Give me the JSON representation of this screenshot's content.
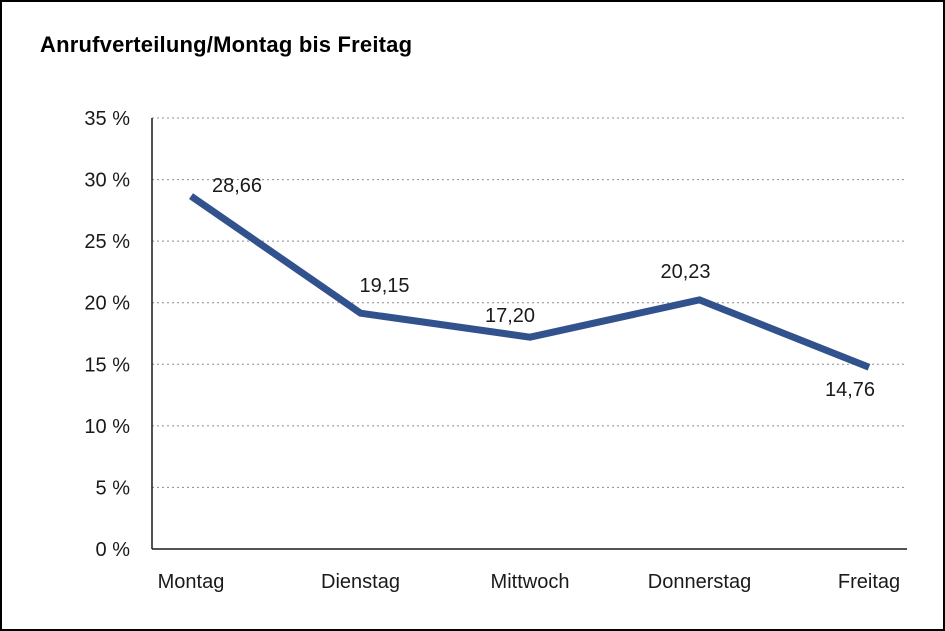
{
  "chart_data": {
    "type": "line",
    "title": "Anrufverteilung/Montag bis Freitag",
    "categories": [
      "Montag",
      "Dienstag",
      "Mittwoch",
      "Donnerstag",
      "Freitag"
    ],
    "values": [
      28.66,
      19.15,
      17.2,
      20.23,
      14.76
    ],
    "point_labels": [
      "28,66",
      "19,15",
      "17,20",
      "20,23",
      "14,76"
    ],
    "xlabel": "",
    "ylabel": "",
    "ylim": [
      0,
      35
    ],
    "y_tick_step": 5,
    "y_tick_labels": [
      "0 %",
      "5 %",
      "10 %",
      "15 %",
      "20 %",
      "25 %",
      "30 %",
      "35 %"
    ],
    "grid": "horizontal-dotted",
    "legend": "none",
    "line_color": "#32528E",
    "line_width": 7,
    "axis_color": "#1a1a1a",
    "grid_color": "#8c8c8c",
    "label_color": "#1a1a1a"
  }
}
